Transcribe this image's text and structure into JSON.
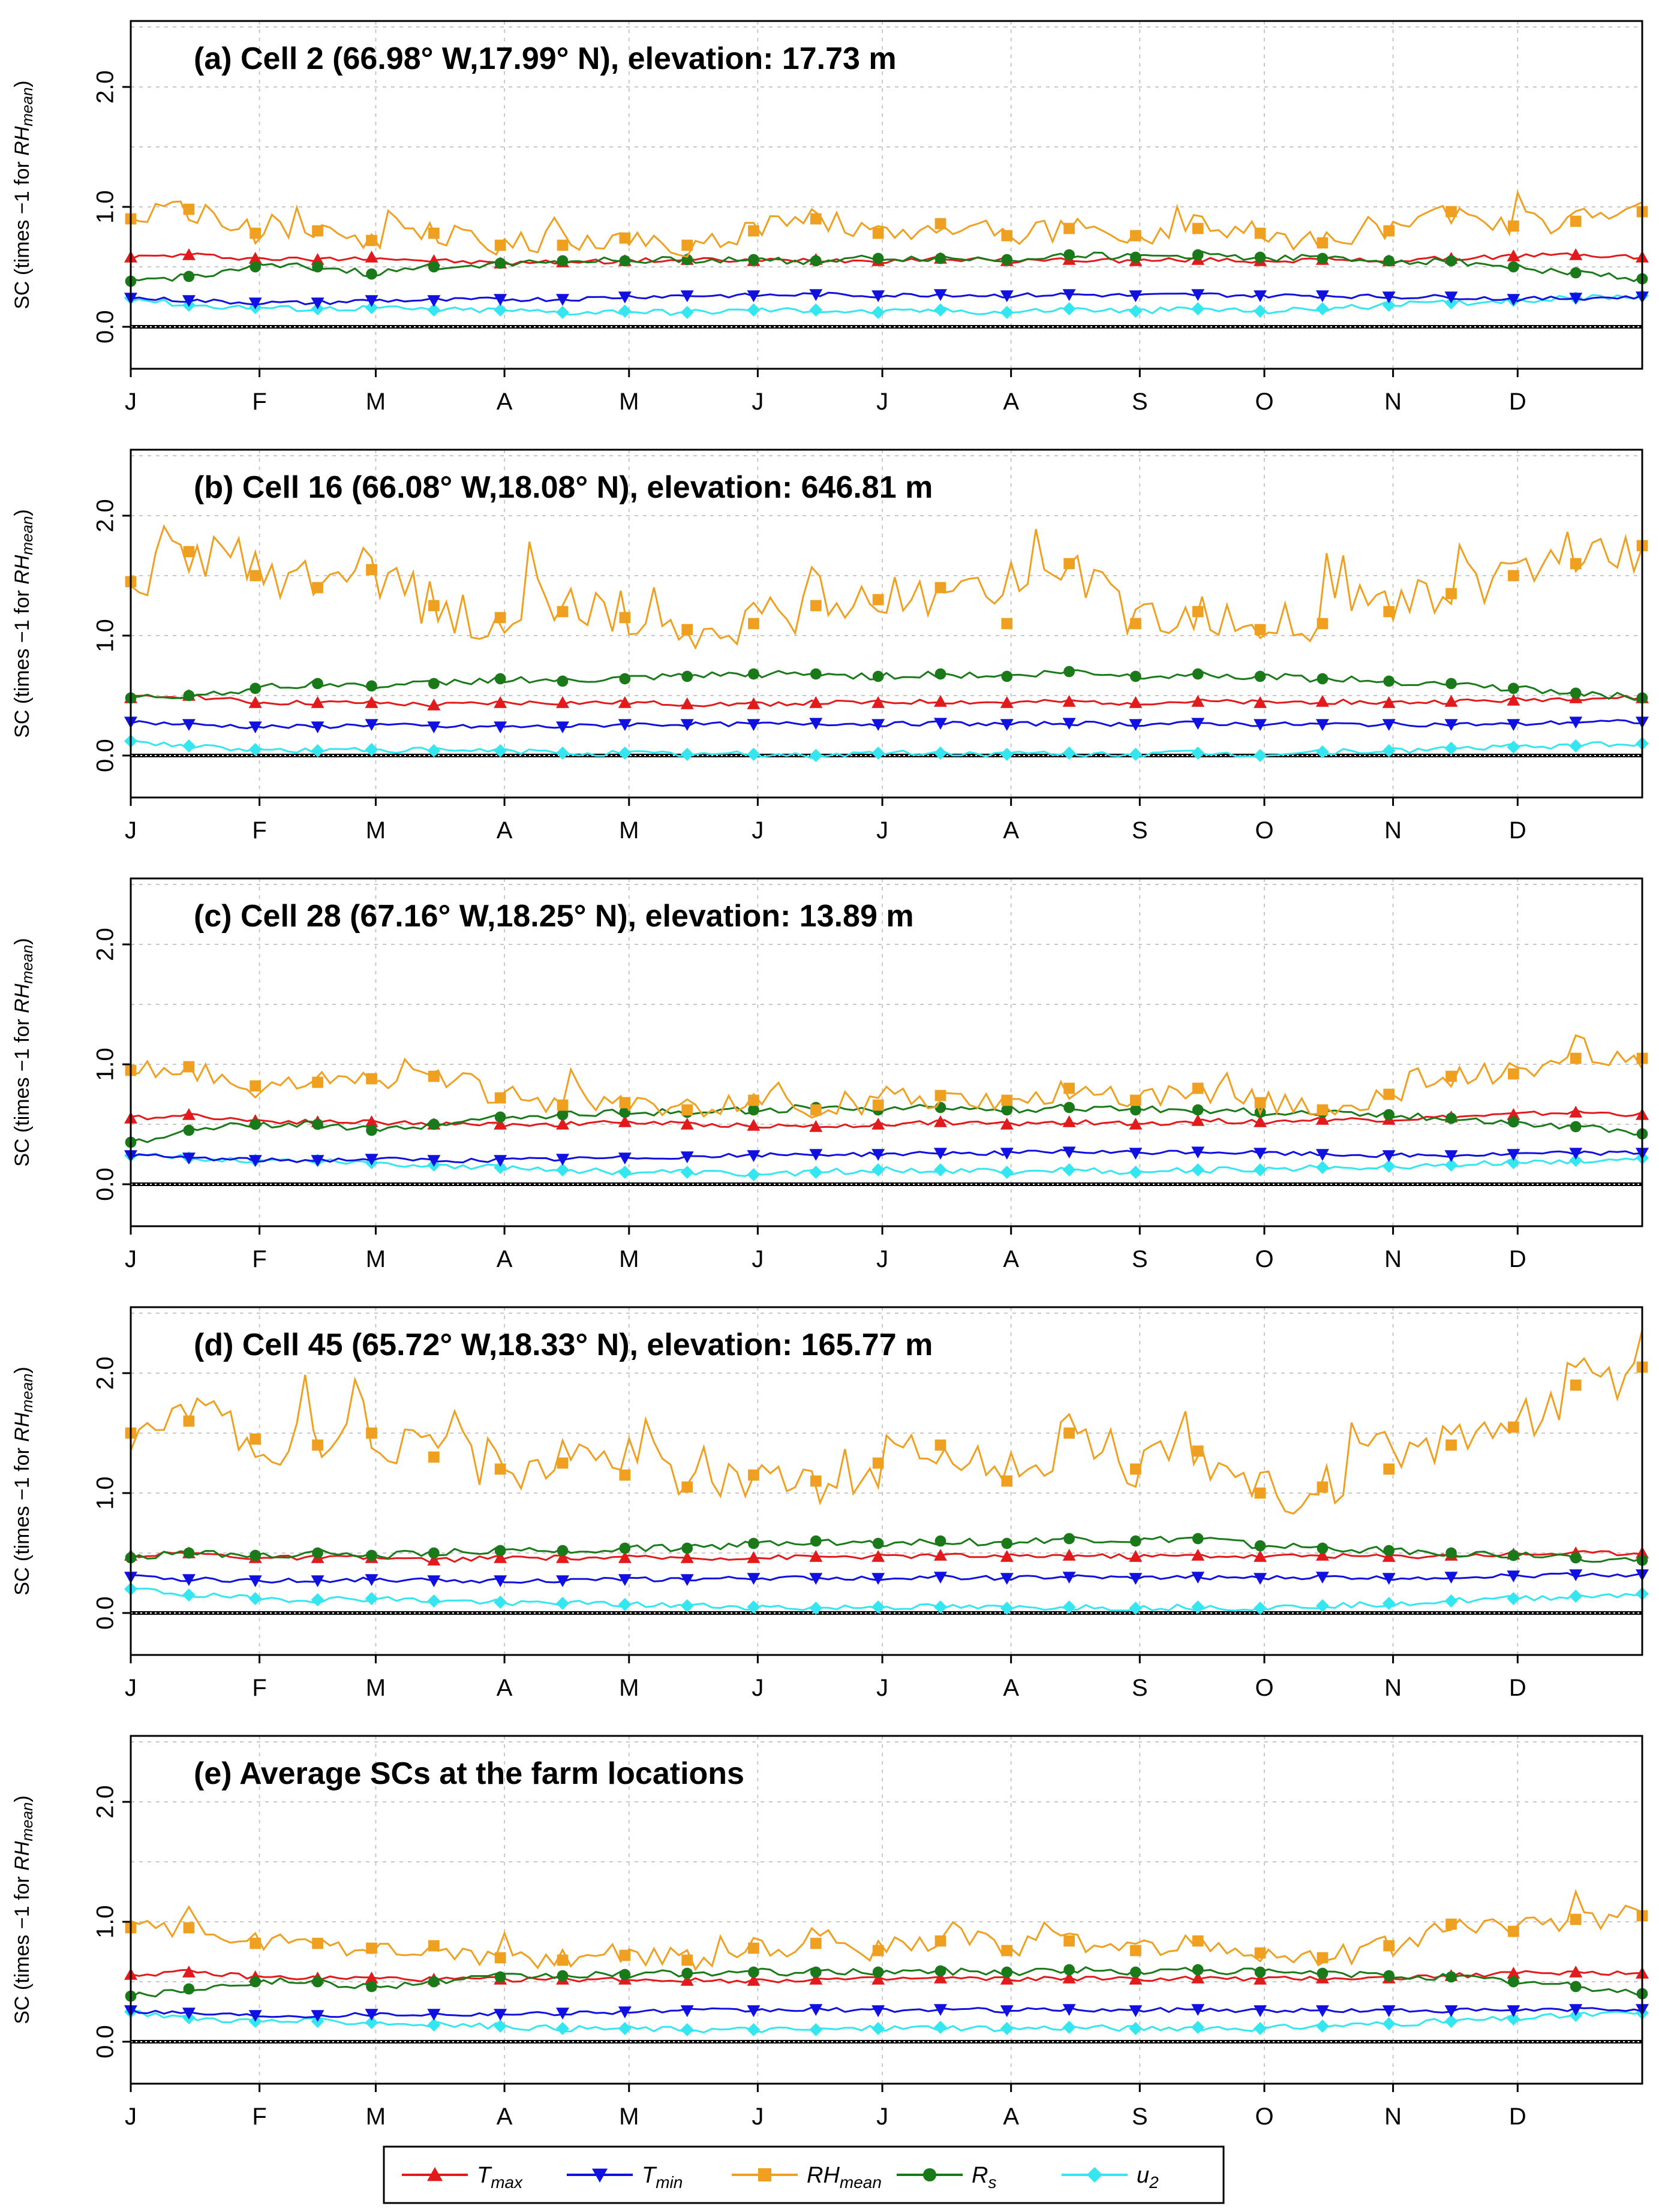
{
  "figure": {
    "y_axis_label": {
      "main": "SC (times −1 for ",
      "sym": "RH",
      "sub": "mean",
      "close": ")"
    },
    "month_labels": [
      "J",
      "F",
      "M",
      "A",
      "M",
      "J",
      "J",
      "A",
      "S",
      "O",
      "N",
      "D"
    ],
    "y_tick_labels": [
      "0.0",
      "1.0",
      "2.0"
    ]
  },
  "legend": [
    {
      "key": "tmax",
      "sym": "T",
      "sub": "max",
      "color": "#e31a1c",
      "marker": "triangle-up"
    },
    {
      "key": "tmin",
      "sym": "T",
      "sub": "min",
      "color": "#1010e0",
      "marker": "triangle-down"
    },
    {
      "key": "rh",
      "sym": "RH",
      "sub": "mean",
      "color": "#f0a020",
      "marker": "square"
    },
    {
      "key": "rs",
      "sym": "R",
      "sub": "s",
      "color": "#1a7a1a",
      "marker": "circle"
    },
    {
      "key": "u2",
      "sym": "u",
      "sub": "2",
      "color": "#33e6f0",
      "marker": "diamond"
    }
  ],
  "chart_data": [
    {
      "type": "line",
      "title": "(a) Cell 2 (66.98° W,17.99° N), elevation: 17.73 m",
      "x_unit": "day of year",
      "x": [
        1,
        15,
        31,
        46,
        59,
        74,
        90,
        105,
        120,
        135,
        151,
        166,
        181,
        196,
        212,
        227,
        243,
        258,
        273,
        288,
        304,
        319,
        334,
        349,
        365
      ],
      "ylim": [
        -0.35,
        2.55
      ],
      "ylabel": "SC (times −1 for RHmean)",
      "series": [
        {
          "name": "Tmax",
          "values": [
            0.58,
            0.6,
            0.57,
            0.56,
            0.58,
            0.55,
            0.53,
            0.54,
            0.55,
            0.56,
            0.55,
            0.56,
            0.55,
            0.57,
            0.55,
            0.56,
            0.55,
            0.56,
            0.55,
            0.56,
            0.55,
            0.57,
            0.59,
            0.6,
            0.58
          ]
        },
        {
          "name": "Tmin",
          "values": [
            0.24,
            0.22,
            0.2,
            0.2,
            0.22,
            0.22,
            0.23,
            0.23,
            0.25,
            0.26,
            0.26,
            0.27,
            0.26,
            0.27,
            0.26,
            0.27,
            0.26,
            0.27,
            0.26,
            0.26,
            0.25,
            0.25,
            0.23,
            0.24,
            0.25
          ]
        },
        {
          "name": "RHmean",
          "values": [
            0.9,
            0.98,
            0.78,
            0.8,
            0.72,
            0.78,
            0.68,
            0.68,
            0.74,
            0.68,
            0.8,
            0.9,
            0.78,
            0.86,
            0.76,
            0.82,
            0.76,
            0.82,
            0.78,
            0.7,
            0.8,
            0.96,
            0.84,
            0.88,
            0.96
          ]
        },
        {
          "name": "Rs",
          "values": [
            0.38,
            0.42,
            0.5,
            0.5,
            0.44,
            0.5,
            0.53,
            0.55,
            0.55,
            0.56,
            0.56,
            0.55,
            0.57,
            0.57,
            0.56,
            0.6,
            0.58,
            0.6,
            0.58,
            0.57,
            0.55,
            0.55,
            0.5,
            0.45,
            0.4
          ]
        },
        {
          "name": "u2",
          "values": [
            0.24,
            0.18,
            0.16,
            0.15,
            0.16,
            0.14,
            0.14,
            0.12,
            0.13,
            0.12,
            0.14,
            0.14,
            0.12,
            0.14,
            0.12,
            0.15,
            0.13,
            0.15,
            0.13,
            0.15,
            0.18,
            0.2,
            0.22,
            0.24,
            0.26
          ]
        }
      ]
    },
    {
      "type": "line",
      "title": "(b) Cell 16 (66.08° W,18.08° N), elevation: 646.81 m",
      "x_unit": "day of year",
      "x": [
        1,
        15,
        31,
        46,
        59,
        74,
        90,
        105,
        120,
        135,
        151,
        166,
        181,
        196,
        212,
        227,
        243,
        258,
        273,
        288,
        304,
        319,
        334,
        349,
        365
      ],
      "ylim": [
        -0.35,
        2.55
      ],
      "ylabel": "SC (times −1 for RHmean)",
      "series": [
        {
          "name": "Tmax",
          "values": [
            0.48,
            0.5,
            0.44,
            0.44,
            0.44,
            0.42,
            0.44,
            0.44,
            0.44,
            0.43,
            0.43,
            0.44,
            0.44,
            0.45,
            0.44,
            0.45,
            0.44,
            0.45,
            0.44,
            0.45,
            0.44,
            0.45,
            0.46,
            0.48,
            0.48
          ]
        },
        {
          "name": "Tmin",
          "values": [
            0.28,
            0.26,
            0.24,
            0.24,
            0.26,
            0.24,
            0.24,
            0.24,
            0.26,
            0.26,
            0.26,
            0.27,
            0.26,
            0.27,
            0.26,
            0.27,
            0.26,
            0.27,
            0.26,
            0.26,
            0.26,
            0.26,
            0.26,
            0.28,
            0.28
          ]
        },
        {
          "name": "RHmean",
          "values": [
            1.45,
            1.7,
            1.5,
            1.4,
            1.55,
            1.25,
            1.15,
            1.2,
            1.15,
            1.05,
            1.1,
            1.25,
            1.3,
            1.4,
            1.1,
            1.6,
            1.1,
            1.2,
            1.05,
            1.1,
            1.2,
            1.35,
            1.5,
            1.6,
            1.75
          ]
        },
        {
          "name": "Rs",
          "values": [
            0.48,
            0.5,
            0.56,
            0.6,
            0.58,
            0.6,
            0.64,
            0.62,
            0.64,
            0.66,
            0.68,
            0.68,
            0.66,
            0.68,
            0.66,
            0.7,
            0.66,
            0.68,
            0.66,
            0.64,
            0.62,
            0.6,
            0.56,
            0.52,
            0.48
          ]
        },
        {
          "name": "u2",
          "values": [
            0.12,
            0.08,
            0.05,
            0.04,
            0.05,
            0.04,
            0.04,
            0.02,
            0.02,
            0.01,
            0.01,
            0.0,
            0.02,
            0.02,
            0.01,
            0.02,
            0.01,
            0.02,
            0.0,
            0.03,
            0.04,
            0.06,
            0.07,
            0.08,
            0.1
          ]
        }
      ]
    },
    {
      "type": "line",
      "title": "(c) Cell 28 (67.16° W,18.25° N), elevation: 13.89 m",
      "x_unit": "day of year",
      "x": [
        1,
        15,
        31,
        46,
        59,
        74,
        90,
        105,
        120,
        135,
        151,
        166,
        181,
        196,
        212,
        227,
        243,
        258,
        273,
        288,
        304,
        319,
        334,
        349,
        365
      ],
      "ylim": [
        -0.35,
        2.55
      ],
      "ylabel": "SC (times −1 for RHmean)",
      "series": [
        {
          "name": "Tmax",
          "values": [
            0.55,
            0.58,
            0.53,
            0.52,
            0.52,
            0.5,
            0.5,
            0.5,
            0.52,
            0.5,
            0.49,
            0.48,
            0.5,
            0.52,
            0.5,
            0.52,
            0.5,
            0.53,
            0.52,
            0.54,
            0.54,
            0.56,
            0.58,
            0.6,
            0.58
          ]
        },
        {
          "name": "Tmin",
          "values": [
            0.24,
            0.22,
            0.2,
            0.2,
            0.21,
            0.2,
            0.2,
            0.21,
            0.22,
            0.23,
            0.24,
            0.25,
            0.25,
            0.26,
            0.26,
            0.27,
            0.26,
            0.27,
            0.26,
            0.25,
            0.24,
            0.24,
            0.25,
            0.26,
            0.26
          ]
        },
        {
          "name": "RHmean",
          "values": [
            0.95,
            0.98,
            0.82,
            0.85,
            0.88,
            0.9,
            0.72,
            0.66,
            0.68,
            0.62,
            0.7,
            0.62,
            0.66,
            0.74,
            0.7,
            0.8,
            0.7,
            0.8,
            0.68,
            0.62,
            0.75,
            0.9,
            0.92,
            1.05,
            1.05
          ]
        },
        {
          "name": "Rs",
          "values": [
            0.35,
            0.45,
            0.5,
            0.5,
            0.45,
            0.5,
            0.56,
            0.58,
            0.6,
            0.6,
            0.62,
            0.64,
            0.62,
            0.64,
            0.62,
            0.64,
            0.62,
            0.62,
            0.6,
            0.6,
            0.58,
            0.55,
            0.52,
            0.48,
            0.42
          ]
        },
        {
          "name": "u2",
          "values": [
            0.24,
            0.22,
            0.2,
            0.2,
            0.18,
            0.16,
            0.14,
            0.12,
            0.1,
            0.1,
            0.08,
            0.1,
            0.12,
            0.12,
            0.1,
            0.12,
            0.1,
            0.12,
            0.12,
            0.14,
            0.15,
            0.16,
            0.18,
            0.2,
            0.22
          ]
        }
      ]
    },
    {
      "type": "line",
      "title": "(d) Cell 45 (65.72° W,18.33° N), elevation: 165.77 m",
      "x_unit": "day of year",
      "x": [
        1,
        15,
        31,
        46,
        59,
        74,
        90,
        105,
        120,
        135,
        151,
        166,
        181,
        196,
        212,
        227,
        243,
        258,
        273,
        288,
        304,
        319,
        334,
        349,
        365
      ],
      "ylim": [
        -0.35,
        2.55
      ],
      "ylabel": "SC (times −1 for RHmean)",
      "series": [
        {
          "name": "Tmax",
          "values": [
            0.48,
            0.5,
            0.46,
            0.46,
            0.46,
            0.44,
            0.46,
            0.46,
            0.46,
            0.46,
            0.46,
            0.47,
            0.47,
            0.48,
            0.47,
            0.48,
            0.47,
            0.48,
            0.47,
            0.48,
            0.47,
            0.48,
            0.49,
            0.5,
            0.5
          ]
        },
        {
          "name": "Tmin",
          "values": [
            0.3,
            0.28,
            0.27,
            0.27,
            0.28,
            0.27,
            0.27,
            0.27,
            0.28,
            0.28,
            0.29,
            0.29,
            0.29,
            0.3,
            0.29,
            0.3,
            0.29,
            0.3,
            0.29,
            0.3,
            0.29,
            0.3,
            0.31,
            0.32,
            0.32
          ]
        },
        {
          "name": "RHmean",
          "values": [
            1.5,
            1.6,
            1.45,
            1.4,
            1.5,
            1.3,
            1.2,
            1.25,
            1.15,
            1.05,
            1.15,
            1.1,
            1.25,
            1.4,
            1.1,
            1.5,
            1.2,
            1.35,
            1.0,
            1.05,
            1.2,
            1.4,
            1.55,
            1.9,
            2.05
          ]
        },
        {
          "name": "Rs",
          "values": [
            0.46,
            0.5,
            0.48,
            0.5,
            0.48,
            0.5,
            0.52,
            0.52,
            0.54,
            0.54,
            0.58,
            0.6,
            0.58,
            0.6,
            0.58,
            0.62,
            0.6,
            0.62,
            0.56,
            0.54,
            0.52,
            0.5,
            0.48,
            0.46,
            0.44
          ]
        },
        {
          "name": "u2",
          "values": [
            0.2,
            0.15,
            0.12,
            0.11,
            0.12,
            0.1,
            0.09,
            0.08,
            0.07,
            0.06,
            0.05,
            0.04,
            0.05,
            0.05,
            0.04,
            0.05,
            0.04,
            0.05,
            0.04,
            0.06,
            0.08,
            0.1,
            0.12,
            0.14,
            0.16
          ]
        }
      ]
    },
    {
      "type": "line",
      "title": "(e) Average SCs at the farm locations",
      "x_unit": "day of year",
      "x": [
        1,
        15,
        31,
        46,
        59,
        74,
        90,
        105,
        120,
        135,
        151,
        166,
        181,
        196,
        212,
        227,
        243,
        258,
        273,
        288,
        304,
        319,
        334,
        349,
        365
      ],
      "ylim": [
        -0.35,
        2.55
      ],
      "ylabel": "SC (times −1 for RHmean)",
      "series": [
        {
          "name": "Tmax",
          "values": [
            0.56,
            0.58,
            0.54,
            0.53,
            0.53,
            0.52,
            0.52,
            0.52,
            0.52,
            0.51,
            0.51,
            0.52,
            0.52,
            0.53,
            0.52,
            0.53,
            0.52,
            0.53,
            0.52,
            0.53,
            0.53,
            0.55,
            0.57,
            0.58,
            0.57
          ]
        },
        {
          "name": "Tmin",
          "values": [
            0.26,
            0.24,
            0.22,
            0.22,
            0.23,
            0.23,
            0.23,
            0.24,
            0.25,
            0.26,
            0.26,
            0.27,
            0.26,
            0.27,
            0.26,
            0.27,
            0.26,
            0.27,
            0.26,
            0.26,
            0.26,
            0.26,
            0.26,
            0.27,
            0.27
          ]
        },
        {
          "name": "RHmean",
          "values": [
            0.95,
            0.95,
            0.82,
            0.82,
            0.78,
            0.8,
            0.7,
            0.68,
            0.72,
            0.68,
            0.78,
            0.82,
            0.76,
            0.84,
            0.76,
            0.84,
            0.76,
            0.84,
            0.74,
            0.7,
            0.8,
            0.98,
            0.92,
            1.02,
            1.05
          ]
        },
        {
          "name": "Rs",
          "values": [
            0.38,
            0.44,
            0.5,
            0.5,
            0.46,
            0.5,
            0.54,
            0.55,
            0.56,
            0.57,
            0.58,
            0.58,
            0.58,
            0.59,
            0.58,
            0.6,
            0.58,
            0.6,
            0.58,
            0.57,
            0.55,
            0.54,
            0.5,
            0.46,
            0.4
          ]
        },
        {
          "name": "u2",
          "values": [
            0.25,
            0.2,
            0.17,
            0.17,
            0.16,
            0.14,
            0.13,
            0.11,
            0.11,
            0.1,
            0.1,
            0.1,
            0.11,
            0.12,
            0.11,
            0.12,
            0.11,
            0.12,
            0.11,
            0.13,
            0.15,
            0.17,
            0.19,
            0.22,
            0.24
          ]
        }
      ]
    }
  ]
}
